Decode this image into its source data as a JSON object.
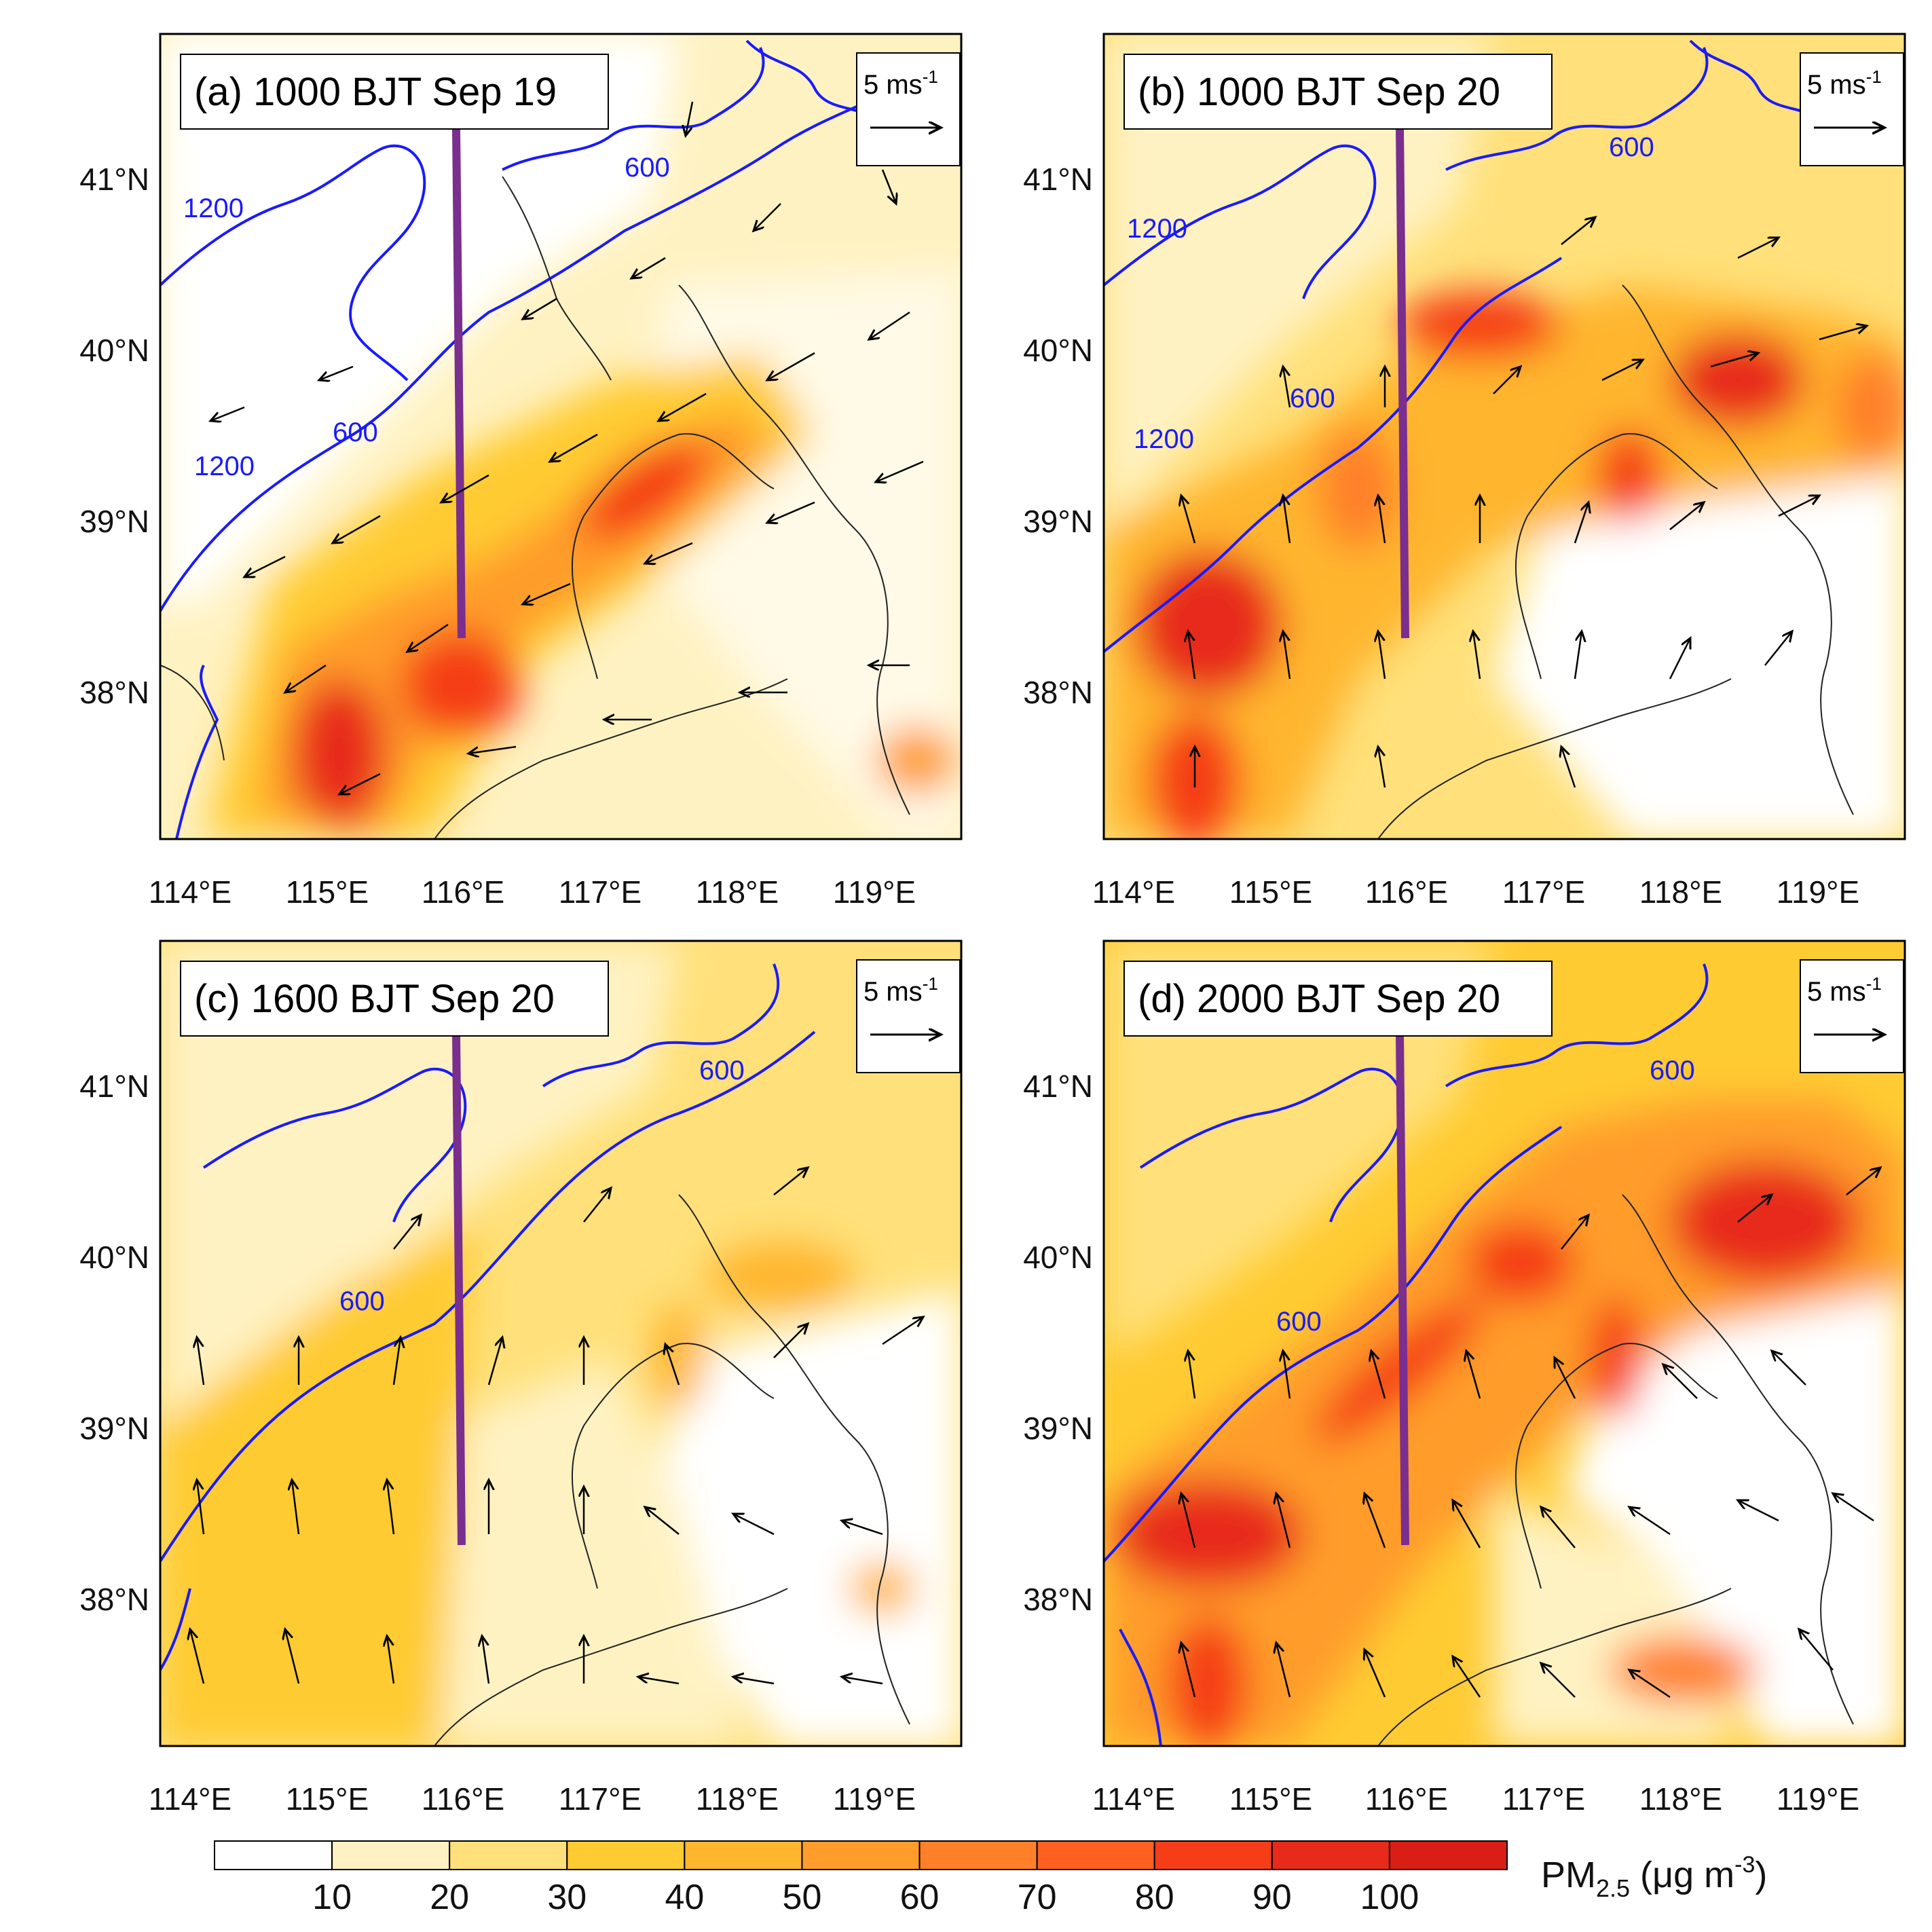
{
  "figure": {
    "panels": [
      {
        "id": "a",
        "title": "(a) 1000 BJT Sep 19"
      },
      {
        "id": "b",
        "title": "(b) 1000 BJT Sep 20"
      },
      {
        "id": "c",
        "title": "(c) 1600 BJT Sep 20"
      },
      {
        "id": "d",
        "title": "(d) 2000 BJT Sep 20"
      }
    ],
    "lon_ticks": [
      "114°E",
      "115°E",
      "116°E",
      "117°E",
      "118°E",
      "119°E"
    ],
    "lat_ticks": [
      "41°N",
      "40°N",
      "39°N",
      "38°N"
    ],
    "reference_vector": {
      "label": "5 ms",
      "exponent": "-1"
    },
    "contour_labels": {
      "a": [
        "1200",
        "600",
        "600",
        "1200"
      ],
      "b": [
        "1200",
        "600",
        "600",
        "1200"
      ],
      "c": [
        "600",
        "600"
      ],
      "d": [
        "600",
        "600"
      ]
    },
    "colorbar": {
      "levels": [
        "10",
        "20",
        "30",
        "40",
        "50",
        "60",
        "70",
        "80",
        "90",
        "100"
      ],
      "colors": [
        "#ffffff",
        "#fff2c2",
        "#ffe07a",
        "#ffcb33",
        "#ffb52e",
        "#ff9c2b",
        "#ff8029",
        "#ff6020",
        "#f53d18",
        "#e82a1a",
        "#d91e16"
      ],
      "title": "PM",
      "title_sub": "2.5",
      "title_units": " (μg m",
      "title_units_exp": "-3",
      "title_close": ")"
    },
    "line_colors": {
      "terrain_contour": "#1a1aff",
      "cross_section": "#7a2e8e",
      "boundary": "#222222",
      "wind": "#000000"
    }
  }
}
